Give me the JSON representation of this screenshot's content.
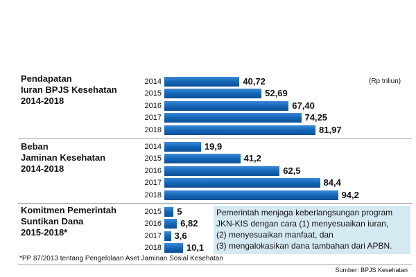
{
  "chart_data": [
    {
      "type": "bar",
      "title": "Pendapatan\nIuran BPJS Kesehatan\n2014-2018",
      "categories": [
        "2014",
        "2015",
        "2016",
        "2017",
        "2018"
      ],
      "values": [
        40.72,
        52.69,
        67.4,
        74.25,
        81.97
      ],
      "value_labels": [
        "40,72",
        "52,69",
        "67,40",
        "74,25",
        "81,97"
      ],
      "color": "#1466b8"
    },
    {
      "type": "bar",
      "title": "Beban\nJaminan Kesehatan\n2014-2018",
      "categories": [
        "2014",
        "2015",
        "2016",
        "2017",
        "2018"
      ],
      "values": [
        19.9,
        41.2,
        62.5,
        84.4,
        94.2
      ],
      "value_labels": [
        "19,9",
        "41,2",
        "62,5",
        "84,4",
        "94,2"
      ],
      "color": "#1466b8"
    },
    {
      "type": "bar",
      "title": "Komitmen Pemerintah\nSuntikan Dana\n2015-2018*",
      "categories": [
        "2015",
        "2016",
        "2017",
        "2018"
      ],
      "values": [
        5,
        6.82,
        3.6,
        10.1
      ],
      "value_labels": [
        "5",
        "6,82",
        "3,6",
        "10,1"
      ],
      "color": "#1466b8"
    }
  ],
  "unit": "(Rp triliun)",
  "note": "Pemerintah menjaga keberlangsungan program\nJKN-KIS dengan cara (1) menyesuaikan iuran,\n(2) menyesuaikan manfaat, dan\n(3) mengalokasikan dana tambahan dari APBN.",
  "footnote": "*PP 87/2013 tentang Pengelolaan Aset Jaminan Sosial Kesehatan",
  "source": "Sumber: BPJS Kesehatan"
}
